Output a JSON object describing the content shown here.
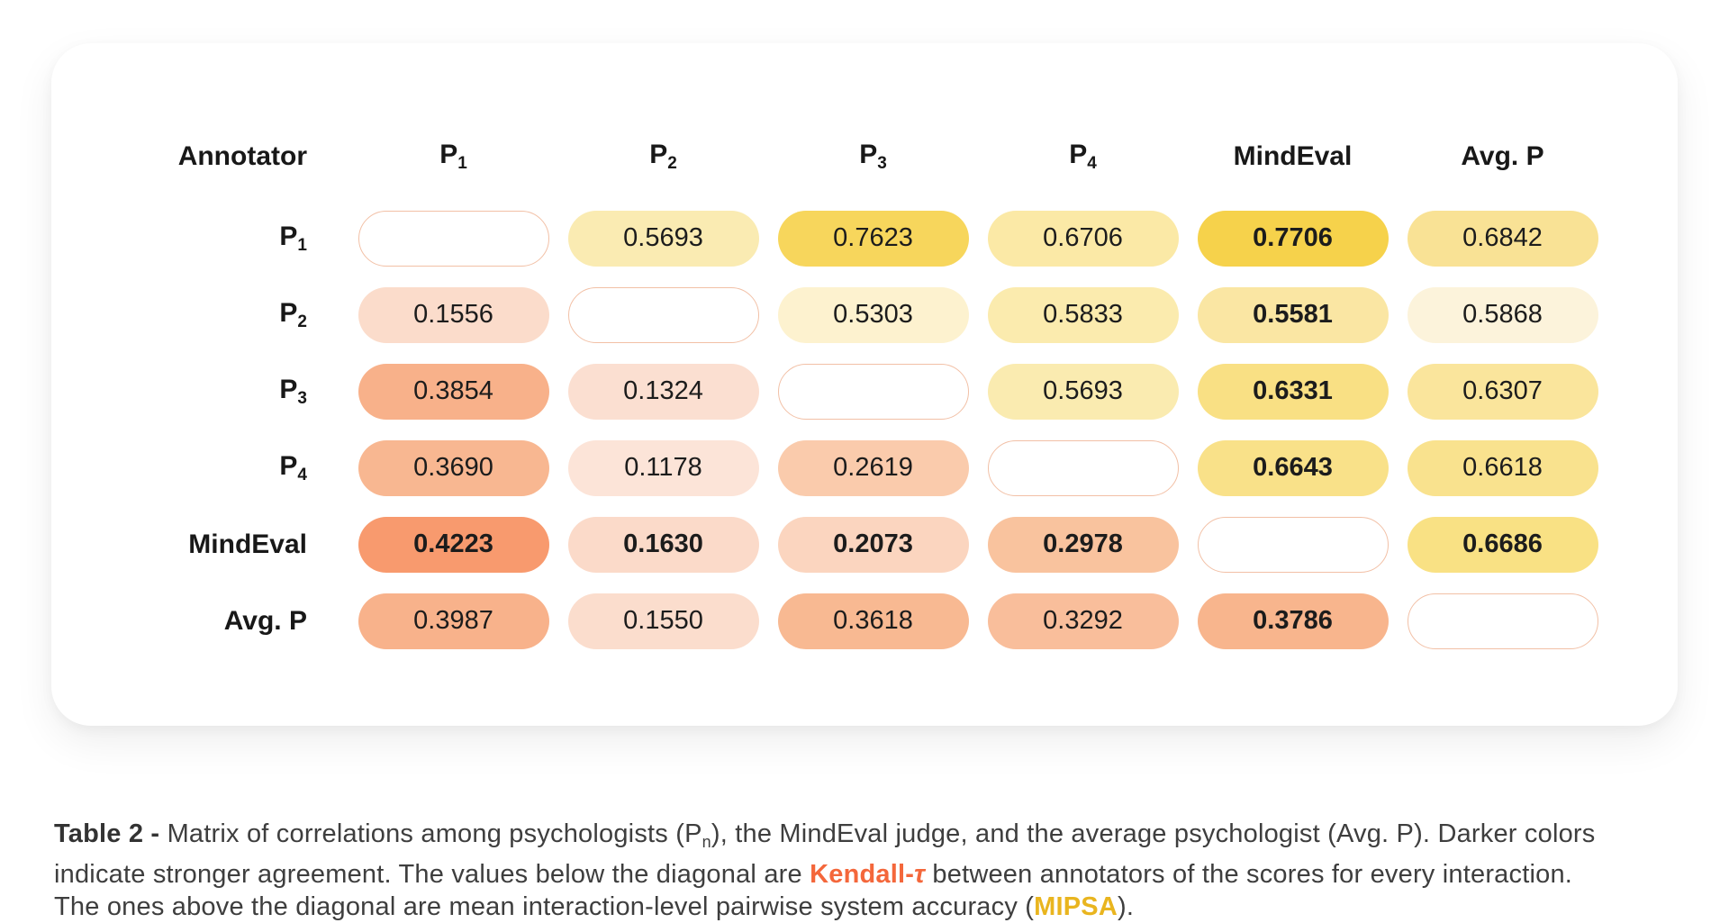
{
  "colors": {
    "diagonal_border": "#f2c0a6",
    "kendall_highlight": "#f4673b",
    "mipsa_highlight": "#e9b51f",
    "text_dark": "#1c1c1c",
    "caption_text": "#3e3e3e",
    "card_background": "#ffffff"
  },
  "table": {
    "columns": [
      {
        "base": "Annotator",
        "sub": ""
      },
      {
        "base": "P",
        "sub": "1"
      },
      {
        "base": "P",
        "sub": "2"
      },
      {
        "base": "P",
        "sub": "3"
      },
      {
        "base": "P",
        "sub": "4"
      },
      {
        "base": "MindEval",
        "sub": ""
      },
      {
        "base": "Avg. P",
        "sub": ""
      }
    ],
    "rows": [
      {
        "label": {
          "base": "P",
          "sub": "1"
        },
        "cells": [
          {
            "diag": true
          },
          {
            "v": "0.5693",
            "bg": "#faebb2",
            "bold": false
          },
          {
            "v": "0.7623",
            "bg": "#f7d65c",
            "bold": false
          },
          {
            "v": "0.6706",
            "bg": "#fbe9a6",
            "bold": false
          },
          {
            "v": "0.7706",
            "bg": "#f6d24b",
            "bold": true
          },
          {
            "v": "0.6842",
            "bg": "#f9e295",
            "bold": false
          }
        ]
      },
      {
        "label": {
          "base": "P",
          "sub": "2"
        },
        "cells": [
          {
            "v": "0.1556",
            "bg": "#fbdccb",
            "bold": false
          },
          {
            "diag": true
          },
          {
            "v": "0.5303",
            "bg": "#fdf2cf",
            "bold": false
          },
          {
            "v": "0.5833",
            "bg": "#fbebae",
            "bold": false
          },
          {
            "v": "0.5581",
            "bg": "#fae6a3",
            "bold": true
          },
          {
            "v": "0.5868",
            "bg": "#fcf3db",
            "bold": false
          }
        ]
      },
      {
        "label": {
          "base": "P",
          "sub": "3"
        },
        "cells": [
          {
            "v": "0.3854",
            "bg": "#f8b18a",
            "bold": false
          },
          {
            "v": "0.1324",
            "bg": "#fbdfd1",
            "bold": false
          },
          {
            "diag": true
          },
          {
            "v": "0.5693",
            "bg": "#faebb0",
            "bold": false
          },
          {
            "v": "0.6331",
            "bg": "#f9e084",
            "bold": true
          },
          {
            "v": "0.6307",
            "bg": "#fae59c",
            "bold": false
          }
        ]
      },
      {
        "label": {
          "base": "P",
          "sub": "4"
        },
        "cells": [
          {
            "v": "0.3690",
            "bg": "#f8b791",
            "bold": false
          },
          {
            "v": "0.1178",
            "bg": "#fce4d8",
            "bold": false
          },
          {
            "v": "0.2619",
            "bg": "#facbac",
            "bold": false
          },
          {
            "diag": true
          },
          {
            "v": "0.6643",
            "bg": "#f9e189",
            "bold": true
          },
          {
            "v": "0.6618",
            "bg": "#f9e28e",
            "bold": false
          }
        ]
      },
      {
        "label": {
          "base": "MindEval",
          "sub": ""
        },
        "cells": [
          {
            "v": "0.4223",
            "bg": "#f89a6e",
            "bold": true
          },
          {
            "v": "0.1630",
            "bg": "#fbdac9",
            "bold": true
          },
          {
            "v": "0.2073",
            "bg": "#fbd5bf",
            "bold": true
          },
          {
            "v": "0.2978",
            "bg": "#f9c39e",
            "bold": true
          },
          {
            "diag": true
          },
          {
            "v": "0.6686",
            "bg": "#f9e184",
            "bold": true
          }
        ]
      },
      {
        "label": {
          "base": "Avg. P",
          "sub": ""
        },
        "cells": [
          {
            "v": "0.3987",
            "bg": "#f8b28b",
            "bold": false
          },
          {
            "v": "0.1550",
            "bg": "#fbddcd",
            "bold": false
          },
          {
            "v": "0.3618",
            "bg": "#f8b992",
            "bold": false
          },
          {
            "v": "0.3292",
            "bg": "#f9be9b",
            "bold": false
          },
          {
            "v": "0.3786",
            "bg": "#f8b58d",
            "bold": true
          },
          {
            "diag": true
          }
        ]
      }
    ]
  },
  "caption": {
    "segments": [
      {
        "text": "Table 2 - ",
        "style": "cap-title"
      },
      {
        "text": "Matrix of correlations among psychologists (P",
        "style": "cap-normal"
      },
      {
        "text": "n",
        "style": "cap-sub"
      },
      {
        "text": "), the MindEval judge, and the average psychologist (Avg. P). Darker colors indicate stronger agreement. The values below the diagonal are ",
        "style": "cap-normal"
      },
      {
        "text": "Kendall-",
        "style": "cap-kendall"
      },
      {
        "text": "τ",
        "style": "cap-tau"
      },
      {
        "text": " between annotators of the scores for every interaction. The ones above the diagonal are mean interaction-level pairwise system accuracy (",
        "style": "cap-normal"
      },
      {
        "text": "MIPSA",
        "style": "cap-mipsa"
      },
      {
        "text": ").",
        "style": "cap-normal"
      }
    ]
  },
  "chart_data": {
    "type": "heatmap",
    "title": "Table 2 - Matrix of correlations among psychologists (Pn), the MindEval judge, and the average psychologist (Avg. P)",
    "rows": [
      "P1",
      "P2",
      "P3",
      "P4",
      "MindEval",
      "Avg. P"
    ],
    "columns": [
      "P1",
      "P2",
      "P3",
      "P4",
      "MindEval",
      "Avg. P"
    ],
    "values": [
      [
        null,
        0.5693,
        0.7623,
        0.6706,
        0.7706,
        0.6842
      ],
      [
        0.1556,
        null,
        0.5303,
        0.5833,
        0.5581,
        0.5868
      ],
      [
        0.3854,
        0.1324,
        null,
        0.5693,
        0.6331,
        0.6307
      ],
      [
        0.369,
        0.1178,
        0.2619,
        null,
        0.6643,
        0.6618
      ],
      [
        0.4223,
        0.163,
        0.2073,
        0.2978,
        null,
        0.6686
      ],
      [
        0.3987,
        0.155,
        0.3618,
        0.3292,
        0.3786,
        null
      ]
    ],
    "below_diagonal_metric": "Kendall-tau between annotators of the scores for every interaction",
    "above_diagonal_metric": "mean interaction-level pairwise system accuracy (MIPSA)",
    "color_rule": "darker colors indicate stronger agreement; below diagonal = orange scale, above diagonal = yellow scale, diagonal = empty white pill with light orange outline"
  }
}
